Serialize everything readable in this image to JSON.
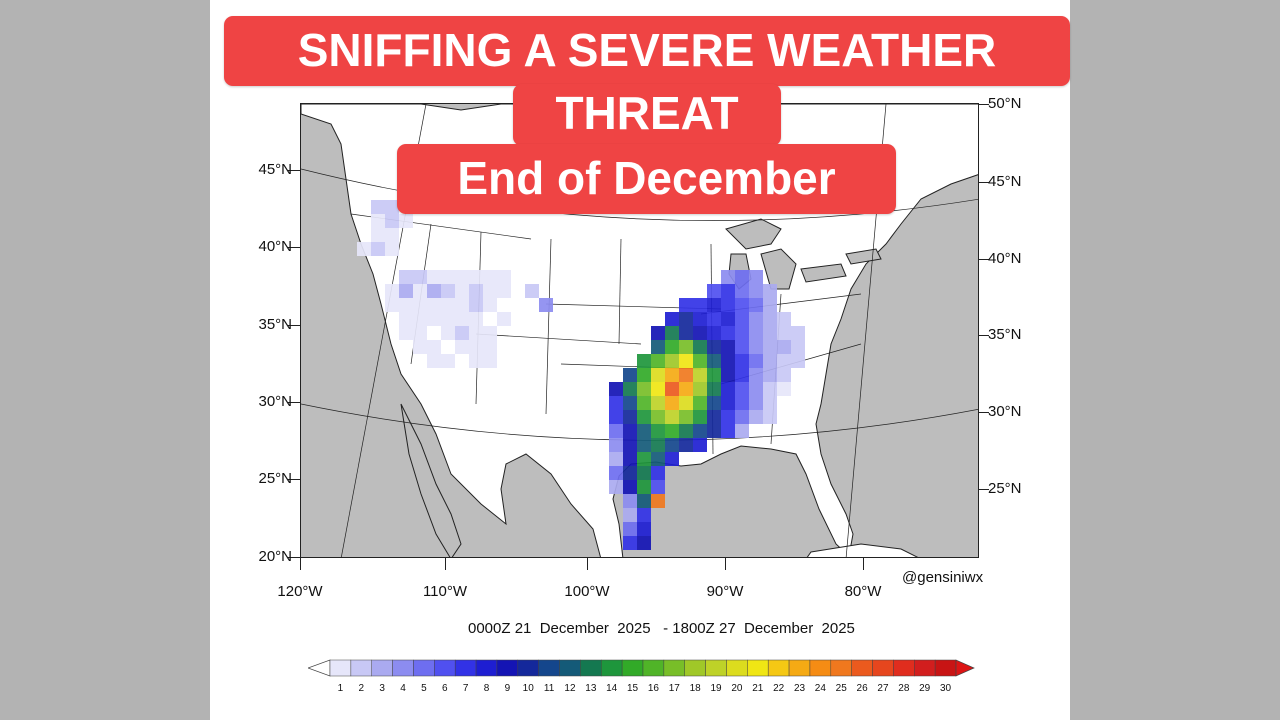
{
  "banner": {
    "line1": "SNIFFING A SEVERE WEATHER",
    "line2": "THREAT",
    "line3": "End of December"
  },
  "map": {
    "lat_labels_left": [
      "45°N",
      "40°N",
      "35°N",
      "30°N",
      "25°N",
      "20°N"
    ],
    "lat_labels_right": [
      "50°N",
      "45°N",
      "40°N",
      "35°N",
      "30°N",
      "25°N"
    ],
    "lon_labels": [
      "120°W",
      "110°W",
      "100°W",
      "90°W",
      "80°W"
    ],
    "credit": "@gensiniwx",
    "date_range": "0000Z 21  December  2025   - 1800Z 27  December  2025",
    "colors": {
      "land": "#ffffff",
      "water": "#bdbdbd",
      "border": "#222222"
    }
  },
  "colorbar": {
    "labels": [
      "1",
      "2",
      "3",
      "4",
      "5",
      "6",
      "7",
      "8",
      "9",
      "10",
      "11",
      "12",
      "13",
      "14",
      "15",
      "16",
      "17",
      "18",
      "19",
      "20",
      "21",
      "22",
      "23",
      "24",
      "25",
      "26",
      "27",
      "28",
      "29",
      "30"
    ],
    "colors": [
      "#e6e6fa",
      "#c8c8f5",
      "#aaaaf0",
      "#8c8cf0",
      "#6e6ef0",
      "#5050f0",
      "#3232e6",
      "#1e1ed2",
      "#1414b4",
      "#14289b",
      "#14468c",
      "#145a78",
      "#147850",
      "#1e963c",
      "#32aa28",
      "#50b428",
      "#78be28",
      "#a0c828",
      "#bed228",
      "#dcdc1e",
      "#f0e614",
      "#f5c814",
      "#f5aa14",
      "#f58c14",
      "#f0781e",
      "#eb5a1e",
      "#e6461e",
      "#e02d1e",
      "#d21e1e",
      "#c81414"
    ]
  }
}
